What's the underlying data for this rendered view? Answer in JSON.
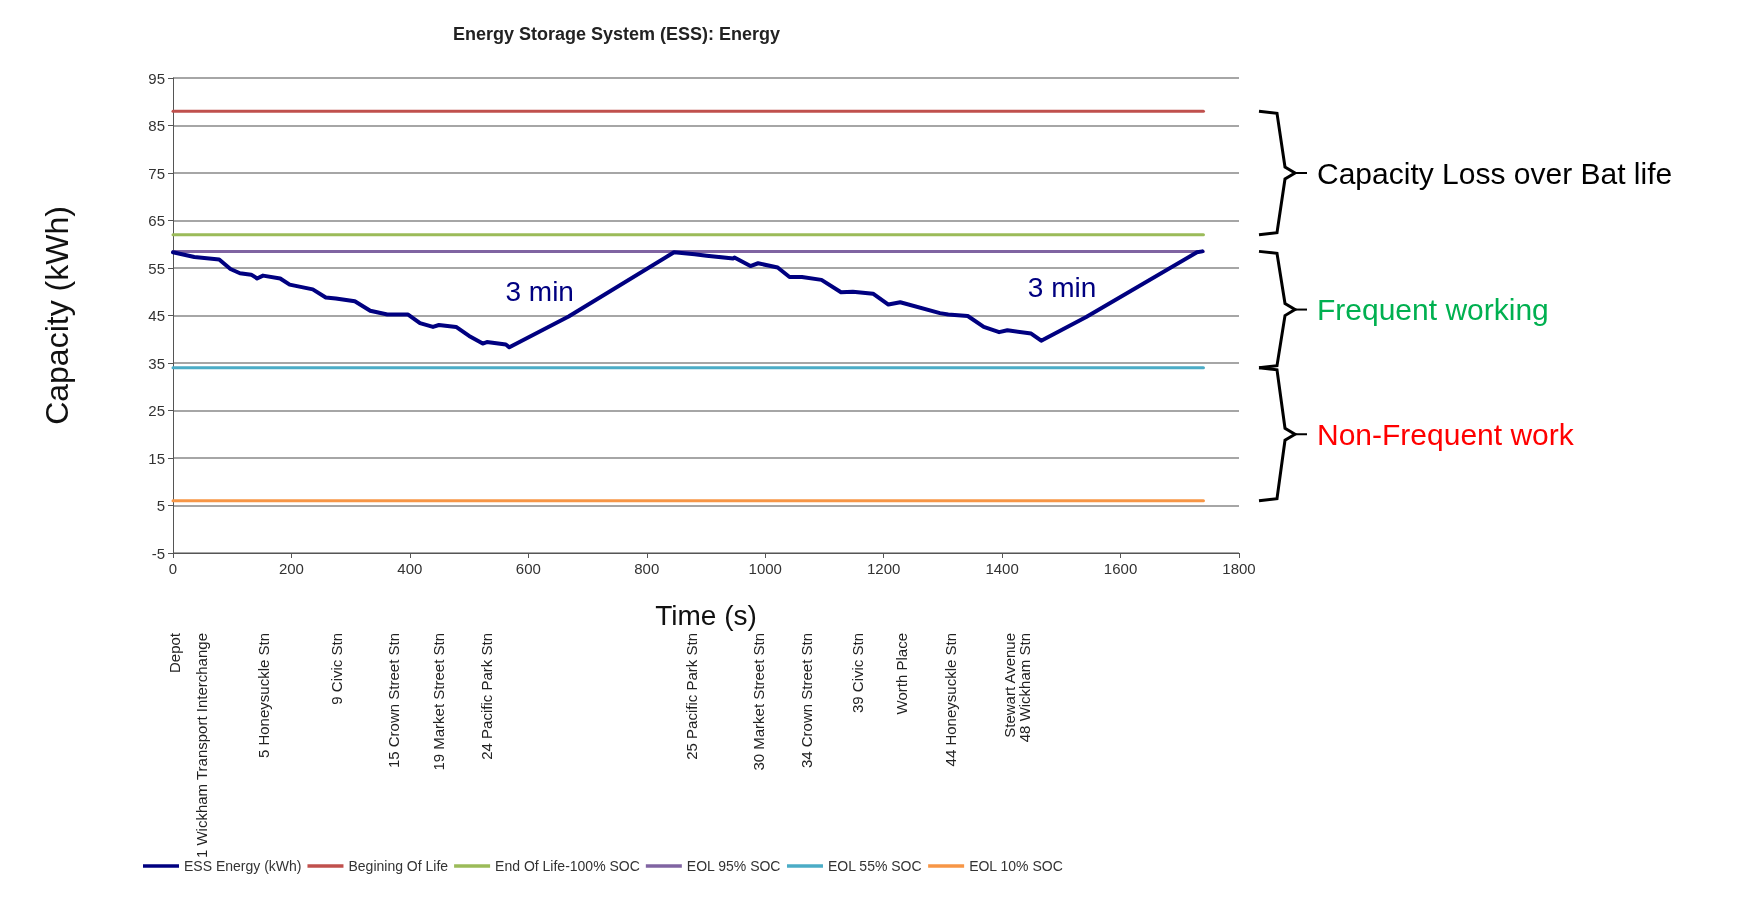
{
  "chart_data": {
    "type": "line",
    "title": "Energy Storage System (ESS): Energy",
    "xlabel": "Time (s)",
    "ylabel": "Capacity (kWh)",
    "xlim": [
      0,
      1800
    ],
    "xticks": [
      0,
      200,
      400,
      600,
      800,
      1000,
      1200,
      1400,
      1600,
      1800
    ],
    "ylim": [
      -5,
      95
    ],
    "yticks": [
      -5,
      5,
      15,
      25,
      35,
      45,
      55,
      65,
      75,
      85,
      95
    ],
    "grid": "y",
    "legend": "bottom",
    "marker": "none",
    "line_style": "solid",
    "series": [
      {
        "name": "ESS Energy (kWh)",
        "color": "#000080",
        "x": [
          0,
          36,
          78,
          97,
          113,
          132,
          142,
          152,
          181,
          197,
          236,
          258,
          275,
          307,
          333,
          362,
          397,
          417,
          439,
          449,
          478,
          500,
          523,
          530,
          562,
          568,
          668,
          846,
          881,
          901,
          946,
          948,
          975,
          988,
          1021,
          1041,
          1062,
          1095,
          1128,
          1148,
          1182,
          1208,
          1228,
          1295,
          1309,
          1342,
          1369,
          1395,
          1409,
          1449,
          1466,
          1542,
          1729,
          1738
        ],
        "values": [
          58.3,
          57.3,
          56.8,
          54.8,
          53.9,
          53.6,
          52.8,
          53.4,
          52.8,
          51.5,
          50.5,
          48.8,
          48.6,
          48.0,
          46.0,
          45.2,
          45.2,
          43.4,
          42.6,
          43.0,
          42.6,
          40.7,
          39.1,
          39.4,
          38.9,
          38.3,
          44.8,
          58.3,
          57.9,
          57.6,
          57.0,
          57.2,
          55.4,
          56.0,
          55.1,
          53.1,
          53.1,
          52.5,
          49.9,
          50.0,
          49.6,
          47.3,
          47.8,
          45.5,
          45.2,
          44.9,
          42.6,
          41.5,
          41.9,
          41.2,
          39.7,
          44.7,
          58.3,
          58.5
        ]
      },
      {
        "name": "Begining Of Life",
        "color": "#c0504d",
        "x": [
          0,
          1740
        ],
        "values": [
          88,
          88
        ]
      },
      {
        "name": "End Of Life-100% SOC",
        "color": "#9bbb59",
        "x": [
          0,
          1740
        ],
        "values": [
          62,
          62
        ]
      },
      {
        "name": "EOL 95% SOC",
        "color": "#8064a2",
        "x": [
          0,
          1740
        ],
        "values": [
          58.5,
          58.5
        ]
      },
      {
        "name": "EOL 55% SOC",
        "color": "#4bacc6",
        "x": [
          0,
          1740
        ],
        "values": [
          34,
          34
        ]
      },
      {
        "name": "EOL 10% SOC",
        "color": "#f79646",
        "x": [
          0,
          1740
        ],
        "values": [
          6,
          6
        ]
      }
    ],
    "annotations": [
      "3 min",
      "3 min",
      "Capacity Loss over Bat life",
      "Frequent working",
      "Non-Frequent work",
      "Depot",
      "1 Wickham Transport Interchange",
      "5 Honeysuckle Stn",
      "9 Civic Stn",
      "15 Crown Street Stn",
      "19 Market Street Stn",
      "24 Pacific Park Stn",
      "25 Pacific Park Stn",
      "30 Market Street Stn",
      "34 Crown Street Stn",
      "39 Civic Stn",
      "Worth Place",
      "44 Honeysuckle Stn",
      "Stewart Avenue",
      "48 Wickham Stn"
    ]
  }
}
